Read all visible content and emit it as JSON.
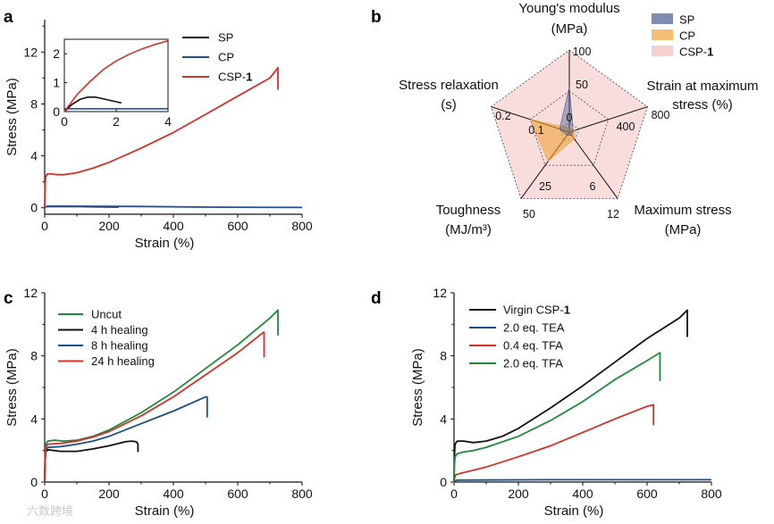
{
  "chart_data": [
    {
      "panel": "a",
      "type": "line",
      "xlabel": "Strain (%)",
      "ylabel": "Stress (MPa)",
      "xlim": [
        0,
        800
      ],
      "ylim": [
        -0.5,
        14.5
      ],
      "xticks": [
        "0",
        "200",
        "400",
        "600",
        "800"
      ],
      "yticks": [
        "0",
        "4",
        "8",
        "12"
      ],
      "legend_position": "top-right",
      "series": [
        {
          "name": "SP",
          "color": "#111111",
          "x": [
            0,
            2,
            10,
            50,
            110,
            150,
            230
          ],
          "y": [
            0,
            0.08,
            0.1,
            0.1,
            0.09,
            0.08,
            0.06
          ]
        },
        {
          "name": "CP",
          "color": "#1f4e9c",
          "x": [
            0,
            2,
            10,
            100,
            300,
            500,
            800
          ],
          "y": [
            0,
            0.08,
            0.12,
            0.12,
            0.1,
            0.05,
            0.02
          ]
        },
        {
          "name": "CSP-1",
          "color": "#d6302a",
          "x": [
            0,
            1,
            3,
            8,
            20,
            40,
            60,
            100,
            150,
            200,
            300,
            400,
            500,
            600,
            700,
            725,
            725
          ],
          "y": [
            0,
            1.5,
            2.4,
            2.6,
            2.6,
            2.55,
            2.55,
            2.7,
            3.05,
            3.5,
            4.6,
            5.8,
            7.2,
            8.6,
            10.0,
            10.8,
            9.1
          ]
        }
      ],
      "inset": {
        "xlim": [
          0,
          4
        ],
        "ylim": [
          0,
          2.5
        ],
        "xticks": [
          "0",
          "2",
          "4"
        ],
        "yticks": [
          "0",
          "1",
          "2"
        ],
        "series": [
          {
            "name": "SP",
            "color": "#111111",
            "x": [
              0,
              0.3,
              0.6,
              0.9,
              1.2,
              1.6,
              2.0,
              2.2
            ],
            "y": [
              0,
              0.25,
              0.42,
              0.5,
              0.5,
              0.42,
              0.34,
              0.3
            ]
          },
          {
            "name": "CP",
            "color": "#1f4e9c",
            "x": [
              0,
              0.05,
              4
            ],
            "y": [
              0,
              0.1,
              0.1
            ]
          },
          {
            "name": "CSP-1",
            "color": "#d6302a",
            "x": [
              0,
              0.5,
              1,
              1.5,
              2,
              2.5,
              3,
              3.5,
              4
            ],
            "y": [
              0,
              0.6,
              1.05,
              1.45,
              1.75,
              1.98,
              2.17,
              2.32,
              2.45
            ]
          }
        ]
      }
    },
    {
      "panel": "b",
      "type": "radar",
      "axes": [
        {
          "label_lines": [
            "Young's modulus",
            "(MPa)"
          ],
          "ticks": [
            "0",
            "50",
            "100"
          ]
        },
        {
          "label_lines": [
            "Strain at maximum",
            "stress (%)"
          ],
          "ticks": [
            "400",
            "800"
          ]
        },
        {
          "label_lines": [
            "Maximum stress",
            "(MPa)"
          ],
          "ticks": [
            "6",
            "12"
          ]
        },
        {
          "label_lines": [
            "Toughness",
            "(MJ/m³)"
          ],
          "ticks": [
            "25",
            "50"
          ]
        },
        {
          "label_lines": [
            "Stress relaxation",
            "(s)"
          ],
          "ticks": [
            "0.1",
            "0.2"
          ]
        }
      ],
      "axis_max": [
        100,
        800,
        12,
        50,
        0.2
      ],
      "series": [
        {
          "name": "SP",
          "color": "#4a5d8f",
          "fill_opacity": 0.45,
          "values": [
            55,
            20,
            0.6,
            1,
            0.025
          ]
        },
        {
          "name": "CP",
          "color": "#f0a33a",
          "fill_opacity": 0.6,
          "values": [
            3,
            60,
            1.2,
            22,
            0.1
          ]
        },
        {
          "name": "CSP-1",
          "color": "#f2b3b3",
          "fill_opacity": 0.45,
          "values": [
            100,
            800,
            12,
            50,
            0.2
          ]
        }
      ],
      "legend_position": "top-right"
    },
    {
      "panel": "c",
      "type": "line",
      "xlabel": "Strain (%)",
      "ylabel": "Stress (MPa)",
      "xlim": [
        0,
        800
      ],
      "ylim": [
        0,
        12
      ],
      "xticks": [
        "0",
        "200",
        "400",
        "600",
        "800"
      ],
      "yticks": [
        "0",
        "4",
        "8",
        "12"
      ],
      "legend_position": "top-left",
      "series": [
        {
          "name": "Uncut",
          "color": "#1f8a3c",
          "x": [
            0,
            1,
            3,
            10,
            30,
            60,
            100,
            150,
            200,
            300,
            400,
            500,
            600,
            700,
            725,
            725
          ],
          "y": [
            0,
            1.5,
            2.4,
            2.6,
            2.65,
            2.6,
            2.65,
            2.9,
            3.3,
            4.4,
            5.7,
            7.2,
            8.7,
            10.4,
            10.9,
            9.3
          ]
        },
        {
          "name": "4 h healing",
          "color": "#111111",
          "x": [
            0,
            1,
            3,
            10,
            50,
            100,
            150,
            200,
            250,
            270,
            285,
            290,
            290
          ],
          "y": [
            0,
            1.2,
            1.9,
            2.05,
            1.95,
            1.95,
            2.1,
            2.3,
            2.55,
            2.6,
            2.55,
            2.4,
            1.9
          ]
        },
        {
          "name": "8 h healing",
          "color": "#1c4f86",
          "x": [
            0,
            1,
            3,
            10,
            50,
            100,
            150,
            200,
            300,
            400,
            500,
            505,
            505
          ],
          "y": [
            0,
            1.3,
            2.0,
            2.2,
            2.25,
            2.4,
            2.6,
            2.9,
            3.7,
            4.5,
            5.4,
            5.4,
            4.1
          ]
        },
        {
          "name": "24 h healing",
          "color": "#d6302a",
          "x": [
            0,
            1,
            3,
            10,
            50,
            100,
            150,
            200,
            300,
            400,
            500,
            600,
            680,
            682,
            682
          ],
          "y": [
            0,
            1.4,
            2.2,
            2.4,
            2.45,
            2.6,
            2.85,
            3.2,
            4.2,
            5.4,
            6.8,
            8.2,
            9.5,
            9.5,
            7.9
          ]
        }
      ]
    },
    {
      "panel": "d",
      "type": "line",
      "xlabel": "Strain (%)",
      "ylabel": "Stress (MPa)",
      "xlim": [
        0,
        800
      ],
      "ylim": [
        0,
        12
      ],
      "xticks": [
        "0",
        "200",
        "400",
        "600",
        "800"
      ],
      "yticks": [
        "0",
        "4",
        "8",
        "12"
      ],
      "legend_position": "top-left",
      "series": [
        {
          "name": "Virgin CSP-1",
          "color": "#111111",
          "x": [
            0,
            1,
            3,
            10,
            30,
            60,
            100,
            150,
            200,
            300,
            400,
            500,
            600,
            700,
            725,
            725
          ],
          "y": [
            0,
            1.6,
            2.4,
            2.6,
            2.6,
            2.5,
            2.6,
            2.9,
            3.4,
            4.7,
            6.1,
            7.6,
            9.1,
            10.4,
            10.9,
            9.2
          ]
        },
        {
          "name": "2.0 eq. TEA",
          "color": "#1c4f86",
          "x": [
            0,
            2,
            10,
            100,
            300,
            500,
            800
          ],
          "y": [
            0,
            0.08,
            0.12,
            0.13,
            0.15,
            0.15,
            0.15
          ]
        },
        {
          "name": "0.4 eq. TFA",
          "color": "#d6302a",
          "x": [
            0,
            1,
            5,
            20,
            50,
            100,
            200,
            300,
            400,
            500,
            600,
            620,
            620
          ],
          "y": [
            0,
            0.2,
            0.45,
            0.55,
            0.7,
            0.95,
            1.6,
            2.3,
            3.15,
            4.0,
            4.8,
            4.9,
            3.6
          ]
        },
        {
          "name": "2.0 eq. TFA",
          "color": "#1f8a3c",
          "x": [
            0,
            1,
            3,
            10,
            30,
            60,
            100,
            200,
            300,
            400,
            500,
            600,
            640,
            640
          ],
          "y": [
            0,
            1.0,
            1.6,
            1.8,
            1.9,
            2.0,
            2.2,
            2.9,
            3.9,
            5.1,
            6.5,
            7.7,
            8.2,
            6.4
          ]
        }
      ]
    }
  ],
  "watermark": "六数跨境"
}
